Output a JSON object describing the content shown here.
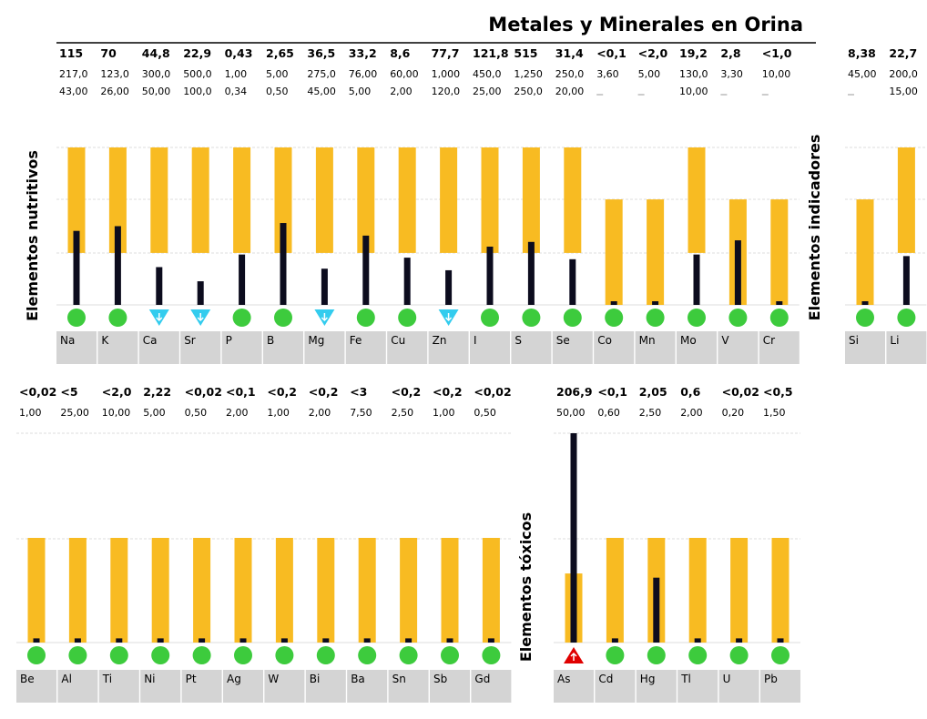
{
  "title": "Metales y Minerales en Orina",
  "colors": {
    "range": "#F8BB22",
    "bar": "#0C0C1E",
    "ok": "#3DCB3D",
    "low": "#33CCEE",
    "high": "#E00000",
    "label_bg": "#D4D4D4",
    "grid": "#DDDDDD"
  },
  "chart_data": [
    {
      "type": "bar",
      "title": "Elementos nutritivos",
      "range_style": "reference",
      "categories": [
        "Na",
        "K",
        "Ca",
        "Sr",
        "P",
        "B",
        "Mg",
        "Fe",
        "Cu",
        "Zn",
        "I",
        "S",
        "Se",
        "Co",
        "Mn",
        "Mo",
        "V",
        "Cr"
      ],
      "values": [
        "115",
        "70",
        "44,8",
        "22,9",
        "0,43",
        "2,65",
        "36,5",
        "33,2",
        "8,6",
        "77,7",
        "121,8",
        "515",
        "31,4",
        "<0,1",
        "<2,0",
        "19,2",
        "2,8",
        "<1,0"
      ],
      "upper": [
        "217,0",
        "123,0",
        "300,0",
        "500,0",
        "1,00",
        "5,00",
        "275,0",
        "76,00",
        "60,00",
        "1,000",
        "450,0",
        "1,250",
        "250,0",
        "3,60",
        "5,00",
        "130,0",
        "3,30",
        "10,00"
      ],
      "lower": [
        "43,00",
        "26,00",
        "50,00",
        "100,0",
        "0,34",
        "0,50",
        "45,00",
        "5,00",
        "2,00",
        "120,0",
        "25,00",
        "250,0",
        "20,00",
        "",
        "",
        "10,00",
        "",
        ""
      ],
      "level": [
        0.47,
        0.5,
        0.24,
        0.15,
        0.32,
        0.52,
        0.23,
        0.44,
        0.3,
        0.22,
        0.37,
        0.4,
        0.29,
        0.02,
        0.02,
        0.32,
        0.41,
        0.02
      ],
      "status": [
        "ok",
        "ok",
        "low",
        "low",
        "ok",
        "ok",
        "low",
        "ok",
        "ok",
        "low",
        "ok",
        "ok",
        "ok",
        "ok",
        "ok",
        "ok",
        "ok",
        "ok"
      ]
    },
    {
      "type": "bar",
      "title": "Elementos indicadores",
      "range_style": "reference",
      "categories": [
        "Si",
        "Li"
      ],
      "values": [
        "8,38",
        "22,7"
      ],
      "upper": [
        "45,00",
        "200,0"
      ],
      "lower": [
        "",
        "15,00"
      ],
      "level": [
        0.02,
        0.31
      ],
      "status": [
        "ok",
        "ok"
      ]
    },
    {
      "type": "bar",
      "title": "",
      "range_style": "upper",
      "categories": [
        "Be",
        "Al",
        "Ti",
        "Ni",
        "Pt",
        "Ag",
        "W",
        "Bi",
        "Ba",
        "Sn",
        "Sb",
        "Gd"
      ],
      "values": [
        "<0,02",
        "<5",
        "<2,0",
        "2,22",
        "<0,02",
        "<0,1",
        "<0,2",
        "<0,2",
        "<3",
        "<0,2",
        "<0,2",
        "<0,02"
      ],
      "upper": [
        "1,00",
        "25,00",
        "10,00",
        "5,00",
        "0,50",
        "2,00",
        "1,00",
        "2,00",
        "7,50",
        "2,50",
        "1,00",
        "0,50"
      ],
      "level": [
        0.02,
        0.02,
        0.02,
        0.02,
        0.02,
        0.02,
        0.02,
        0.02,
        0.02,
        0.02,
        0.02,
        0.02
      ],
      "status": [
        "ok",
        "ok",
        "ok",
        "ok",
        "ok",
        "ok",
        "ok",
        "ok",
        "ok",
        "ok",
        "ok",
        "ok"
      ]
    },
    {
      "type": "bar",
      "title": "Elementos tóxicos",
      "range_style": "upper",
      "categories": [
        "As",
        "Cd",
        "Hg",
        "Tl",
        "U",
        "Pb"
      ],
      "values": [
        "206,9",
        "<0,1",
        "2,05",
        "0,6",
        "<0,02",
        "<0,5"
      ],
      "upper": [
        "50,00",
        "0,60",
        "2,50",
        "2,00",
        "0,20",
        "1,50"
      ],
      "level": [
        1.0,
        0.02,
        0.31,
        0.02,
        0.02,
        0.02
      ],
      "status": [
        "high",
        "ok",
        "ok",
        "ok",
        "ok",
        "ok"
      ]
    }
  ]
}
